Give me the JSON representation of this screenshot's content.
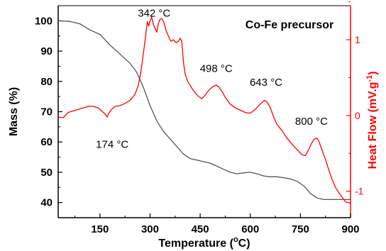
{
  "chart_data": {
    "type": "line",
    "title": "Co-Fe precursor",
    "xlabel": "Temperature (",
    "xlabel_sup": "o",
    "xlabel_end": "C)",
    "ylabel": "Mass (%)",
    "y2label": "Heat Flow (mV.g",
    "y2label_sup": "-1",
    "y2label_end": ")",
    "xlim": [
      25,
      900
    ],
    "ylim": [
      35,
      105
    ],
    "y2lim": [
      -1.35,
      1.45
    ],
    "xticks": [
      150,
      300,
      450,
      600,
      750,
      900
    ],
    "xtick_labels": [
      "150",
      "300",
      "450",
      "600",
      "750",
      "900"
    ],
    "yticks": [
      40,
      50,
      60,
      70,
      80,
      90,
      100
    ],
    "ytick_labels": [
      "40",
      "50",
      "60",
      "70",
      "80",
      "90",
      "100"
    ],
    "y2ticks": [
      -1,
      0,
      1
    ],
    "y2tick_labels": [
      "-1",
      "0",
      "1"
    ],
    "grid": false,
    "colors": {
      "mass": "#555555",
      "heat": "#ff0000",
      "axis": "#000000",
      "right_axis": "#ff0000"
    },
    "series": [
      {
        "axis": "left",
        "x": [
          25,
          60,
          90,
          120,
          150,
          180,
          210,
          240,
          260,
          280,
          300,
          320,
          340,
          360,
          380,
          400,
          420,
          440,
          460,
          480,
          500,
          520,
          540,
          560,
          580,
          600,
          620,
          640,
          660,
          680,
          700,
          720,
          740,
          760,
          780,
          800,
          820,
          850,
          880,
          900
        ],
        "y": [
          100,
          99.8,
          99,
          97,
          95.5,
          92,
          89,
          86,
          83,
          78,
          72,
          67,
          63.5,
          61,
          58.5,
          56,
          54.5,
          54,
          53.5,
          53,
          52,
          51,
          50,
          49.5,
          49.8,
          50,
          49.5,
          48.8,
          48.5,
          48.5,
          48.2,
          47.8,
          47,
          45.5,
          43,
          41.5,
          41,
          41,
          41,
          41
        ]
      },
      {
        "axis": "right",
        "x": [
          25,
          40,
          55,
          70,
          85,
          100,
          115,
          130,
          145,
          155,
          165,
          172,
          178,
          185,
          195,
          210,
          225,
          240,
          255,
          265,
          272,
          278,
          283,
          288,
          292,
          296,
          300,
          305,
          310,
          315,
          320,
          325,
          330,
          335,
          342,
          348,
          355,
          362,
          370,
          378,
          385,
          390,
          395,
          400,
          405,
          410,
          415,
          420,
          425,
          435,
          445,
          455,
          465,
          475,
          485,
          492,
          498,
          505,
          515,
          525,
          540,
          555,
          570,
          585,
          600,
          615,
          625,
          635,
          643,
          650,
          660,
          670,
          680,
          695,
          710,
          725,
          740,
          755,
          765,
          775,
          782,
          790,
          796,
          800,
          806,
          815,
          825,
          835,
          845,
          855,
          865,
          875,
          885,
          893,
          900
        ],
        "y": [
          -0.02,
          -0.03,
          0.04,
          0.06,
          0.08,
          0.1,
          0.12,
          0.12,
          0.1,
          0.06,
          0.02,
          -0.02,
          0.04,
          0.08,
          0.12,
          0.13,
          0.16,
          0.2,
          0.28,
          0.4,
          0.56,
          0.75,
          0.92,
          1.1,
          1.24,
          1.18,
          1.25,
          1.3,
          1.2,
          1.15,
          1.1,
          1.22,
          1.27,
          1.28,
          1.22,
          1.12,
          1.05,
          0.98,
          1.0,
          0.96,
          0.98,
          1.02,
          0.98,
          0.7,
          0.55,
          0.48,
          0.43,
          0.4,
          0.36,
          0.3,
          0.25,
          0.22,
          0.27,
          0.33,
          0.37,
          0.39,
          0.4,
          0.38,
          0.32,
          0.24,
          0.15,
          0.1,
          0.07,
          0.04,
          0.03,
          0.08,
          0.13,
          0.17,
          0.2,
          0.18,
          0.1,
          -0.02,
          -0.12,
          -0.2,
          -0.3,
          -0.38,
          -0.45,
          -0.52,
          -0.53,
          -0.45,
          -0.38,
          -0.32,
          -0.3,
          -0.3,
          -0.35,
          -0.46,
          -0.58,
          -0.72,
          -0.85,
          -0.95,
          -1.02,
          -1.08,
          -1.14,
          -1.15,
          -1.16
        ]
      }
    ],
    "annotations": [
      {
        "text": "342 °C",
        "x": 342,
        "axis": "right",
        "y": 1.25
      },
      {
        "text": "174 °C",
        "x": 174,
        "axis": "right",
        "y": -0.22
      },
      {
        "text": "498 °C",
        "x": 498,
        "axis": "right",
        "y": 0.5
      },
      {
        "text": "643 °C",
        "x": 643,
        "axis": "right",
        "y": 0.3
      },
      {
        "text": "800 °C",
        "x": 800,
        "axis": "right",
        "y": -0.2
      }
    ]
  }
}
